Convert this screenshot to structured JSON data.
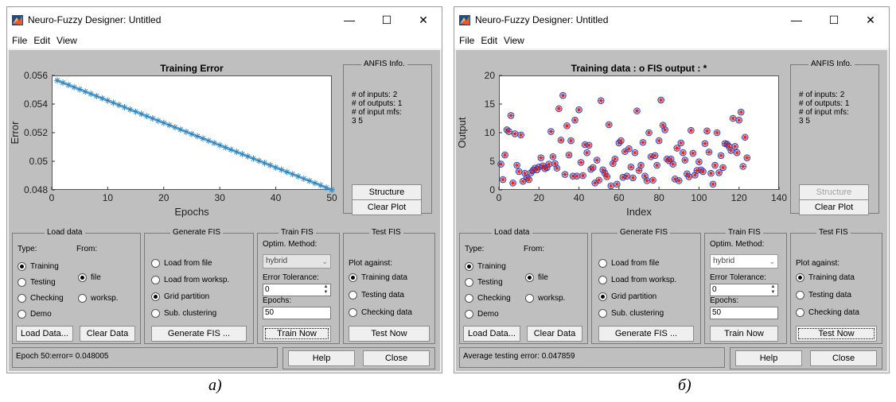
{
  "windows": [
    {
      "title": "Neuro-Fuzzy Designer: Untitled",
      "menu": [
        "File",
        "Edit",
        "View"
      ],
      "controls": {
        "minimize": "—",
        "maximize": "☐",
        "close": "✕"
      },
      "anfis_info": {
        "title": "ANFIS Info.",
        "lines": [
          "# of inputs: 2",
          "# of outputs: 1",
          "# of input mfs:",
          "3 5"
        ]
      },
      "structure_button": "Structure",
      "structure_enabled": true,
      "clear_plot_button": "Clear Plot",
      "load_data": {
        "title": "Load data",
        "type_label": "Type:",
        "from_label": "From:",
        "types": [
          "Training",
          "Testing",
          "Checking",
          "Demo"
        ],
        "selected_type": "Training",
        "sources": [
          "file",
          "worksp."
        ],
        "selected_source": "file",
        "load_button": "Load Data...",
        "clear_button": "Clear Data"
      },
      "generate_fis": {
        "title": "Generate FIS",
        "options": [
          "Load from file",
          "Load from worksp.",
          "Grid partition",
          "Sub. clustering"
        ],
        "selected": "Grid partition",
        "button": "Generate FIS ..."
      },
      "train_fis": {
        "title": "Train FIS",
        "method_label": "Optim. Method:",
        "method": "hybrid",
        "tolerance_label": "Error Tolerance:",
        "tolerance": "0",
        "epochs_label": "Epochs:",
        "epochs": "50",
        "button": "Train Now"
      },
      "test_fis": {
        "title": "Test FIS",
        "plot_against_label": "Plot against:",
        "options": [
          "Training data",
          "Testing data",
          "Checking data"
        ],
        "selected": "Training data",
        "button": "Test Now"
      },
      "status": "Epoch 50:error= 0.048005",
      "help_button": "Help",
      "close_button": "Close",
      "caption": "а)",
      "chart_data": {
        "type": "line",
        "title": "Training Error",
        "xlabel": "Epochs",
        "ylabel": "Error",
        "xlim": [
          0,
          50
        ],
        "ylim": [
          0.048,
          0.056
        ],
        "x_ticks": [
          "0",
          "10",
          "20",
          "30",
          "40",
          "50"
        ],
        "y_ticks": [
          "0.048",
          "0.05",
          "0.052",
          "0.054",
          "0.056"
        ],
        "marker": "*",
        "color": "#2e86c1",
        "series": [
          {
            "x_start": 1,
            "x_end": 50,
            "y_start": 0.05565,
            "y_end": 0.048005
          }
        ]
      }
    },
    {
      "title": "Neuro-Fuzzy Designer: Untitled",
      "menu": [
        "File",
        "Edit",
        "View"
      ],
      "controls": {
        "minimize": "—",
        "maximize": "☐",
        "close": "✕"
      },
      "anfis_info": {
        "title": "ANFIS Info.",
        "lines": [
          "# of inputs: 2",
          "# of outputs: 1",
          "# of input mfs:",
          "3 5"
        ]
      },
      "structure_button": "Structure",
      "structure_enabled": false,
      "clear_plot_button": "Clear Plot",
      "load_data": {
        "title": "Load data",
        "type_label": "Type:",
        "from_label": "From:",
        "types": [
          "Training",
          "Testing",
          "Checking",
          "Demo"
        ],
        "selected_type": "Training",
        "sources": [
          "file",
          "worksp."
        ],
        "selected_source": "file",
        "load_button": "Load Data...",
        "clear_button": "Clear Data"
      },
      "generate_fis": {
        "title": "Generate FIS",
        "options": [
          "Load from file",
          "Load from worksp.",
          "Grid partition",
          "Sub. clustering"
        ],
        "selected": "Grid partition",
        "button": "Generate FIS ..."
      },
      "train_fis": {
        "title": "Train FIS",
        "method_label": "Optim. Method:",
        "method": "hybrid",
        "tolerance_label": "Error Tolerance:",
        "tolerance": "0",
        "epochs_label": "Epochs:",
        "epochs": "50",
        "button": "Train Now"
      },
      "test_fis": {
        "title": "Test FIS",
        "plot_against_label": "Plot against:",
        "options": [
          "Training data",
          "Testing data",
          "Checking data"
        ],
        "selected": "Training data",
        "button": "Test Now"
      },
      "status": "Average testing error: 0.047859",
      "help_button": "Help",
      "close_button": "Close",
      "caption": "б)",
      "chart_data": {
        "type": "scatter",
        "title": "Training data : o   FIS output : *",
        "xlabel": "Index",
        "ylabel": "Output",
        "xlim": [
          0,
          140
        ],
        "ylim": [
          0,
          20
        ],
        "x_ticks": [
          "0",
          "20",
          "40",
          "60",
          "80",
          "100",
          "120",
          "140"
        ],
        "y_ticks": [
          "0",
          "5",
          "10",
          "15",
          "20"
        ],
        "series": [
          {
            "name": "Training data",
            "marker": "o",
            "color": "#1f3fbf"
          },
          {
            "name": "FIS output",
            "marker": "*",
            "color": "#e02020"
          }
        ],
        "y": [
          4.5,
          1.8,
          6.1,
          10.5,
          10.2,
          13,
          1.2,
          9.8,
          4.3,
          3.2,
          9.6,
          1.5,
          2.9,
          2.1,
          1.8,
          3,
          3.4,
          3.8,
          3.5,
          4,
          5.6,
          4.2,
          3.7,
          3.9,
          4.5,
          10.2,
          5.8,
          4.6,
          3.8,
          14.2,
          8.7,
          16.5,
          2.7,
          11.2,
          6.1,
          8.6,
          2.4,
          12.2,
          2.4,
          14,
          4.8,
          2.5,
          7.9,
          6.5,
          7.8,
          3.6,
          3.9,
          1.2,
          5.2,
          1.7,
          15.6,
          3.5,
          2.9,
          2.3,
          11.4,
          0.7,
          4.6,
          5.4,
          1,
          8.2,
          8.6,
          2.2,
          6.7,
          2.4,
          7.2,
          4,
          2.1,
          6.5,
          13.8,
          3.4,
          4.3,
          8.3,
          2.4,
          1.6,
          10,
          5.8,
          1.7,
          6,
          4.3,
          8.6,
          15.7,
          11.3,
          10.5,
          5.4,
          5.1,
          5.4,
          4.5,
          1.9,
          7.3,
          1.6,
          8.2,
          6.5,
          5.2,
          2.8,
          2.3,
          10.4,
          6.4,
          2.6,
          3.4,
          4.9,
          3.5,
          3.2,
          8.1,
          10.3,
          6.6,
          2.9,
          1,
          4.3,
          10,
          3,
          6,
          3.9,
          8.1,
          8,
          7.6,
          6.9,
          12.5,
          7.6,
          6.5,
          12.2,
          13.6,
          4.1,
          9.2,
          5.6
        ]
      }
    }
  ]
}
